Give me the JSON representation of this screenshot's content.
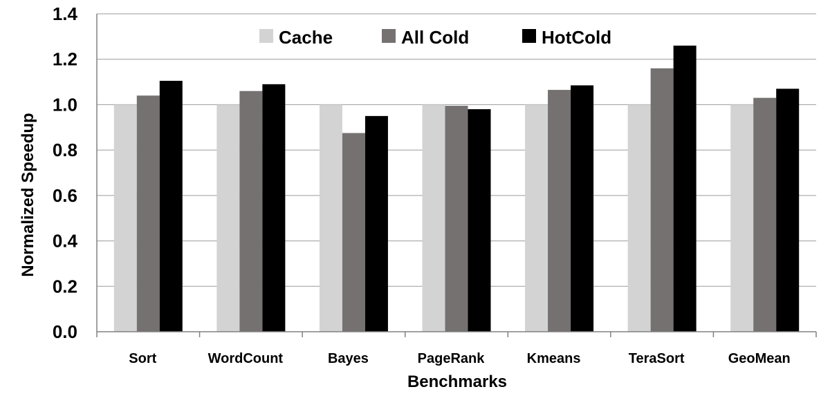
{
  "chart_data": {
    "type": "bar",
    "categories": [
      "Sort",
      "WordCount",
      "Bayes",
      "PageRank",
      "Kmeans",
      "TeraSort",
      "GeoMean"
    ],
    "series": [
      {
        "name": "Cache",
        "color": "#d3d3d3",
        "values": [
          1.0,
          1.0,
          1.0,
          1.0,
          1.0,
          1.0,
          1.0
        ]
      },
      {
        "name": "All Cold",
        "color": "#767171",
        "values": [
          1.04,
          1.06,
          0.875,
          0.995,
          1.065,
          1.16,
          1.03
        ]
      },
      {
        "name": "HotCold",
        "color": "#000000",
        "values": [
          1.105,
          1.09,
          0.95,
          0.98,
          1.085,
          1.26,
          1.07
        ]
      }
    ],
    "title": "",
    "xlabel": "Benchmarks",
    "ylabel": "Normalized Speedup",
    "ylim": [
      0,
      1.4
    ],
    "yticks": [
      "0.0",
      "0.2",
      "0.4",
      "0.6",
      "0.8",
      "1.0",
      "1.2",
      "1.4"
    ],
    "grid": true,
    "legend_position": "top-center"
  }
}
